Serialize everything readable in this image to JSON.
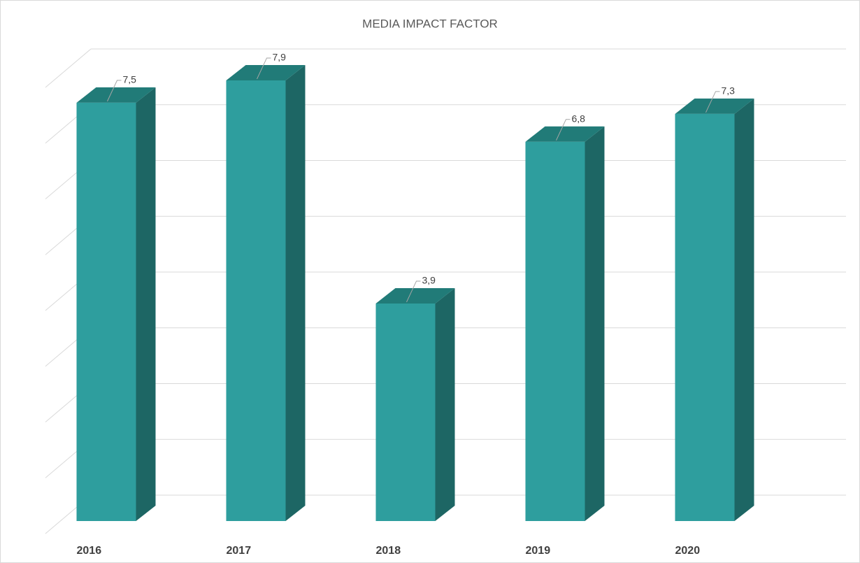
{
  "chart_data": {
    "type": "bar3d",
    "title": "MEDIA IMPACT FACTOR",
    "categories": [
      "2016",
      "2017",
      "2018",
      "2019",
      "2020"
    ],
    "values": [
      7.5,
      7.9,
      3.9,
      6.8,
      7.3
    ],
    "value_labels": [
      "7,5",
      "7,9",
      "3,9",
      "6,8",
      "7,3"
    ],
    "color": "#2e9e9e",
    "side_color": "#1d6664",
    "top_color": "#217b78",
    "ylim": [
      0,
      8
    ],
    "yticks": [
      0,
      1,
      2,
      3,
      4,
      5,
      6,
      7,
      8
    ],
    "grid": true
  }
}
